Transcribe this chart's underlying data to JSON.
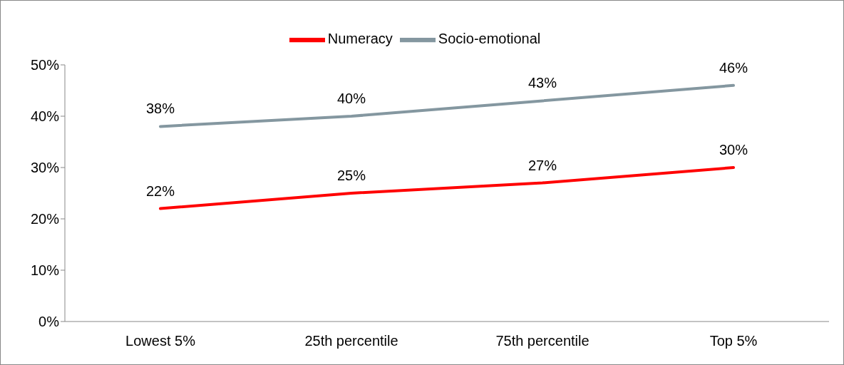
{
  "chart_data": {
    "type": "line",
    "categories": [
      "Lowest 5%",
      "25th percentile",
      "75th percentile",
      "Top 5%"
    ],
    "series": [
      {
        "name": "Numeracy",
        "color": "#ff0000",
        "values": [
          22,
          25,
          27,
          30
        ],
        "value_labels": [
          "22%",
          "25%",
          "27%",
          "30%"
        ]
      },
      {
        "name": "Socio-emotional",
        "color": "#8497a0",
        "values": [
          38,
          40,
          43,
          46
        ],
        "value_labels": [
          "38%",
          "40%",
          "43%",
          "46%"
        ]
      }
    ],
    "ylim": [
      0,
      50
    ],
    "yticks": [
      {
        "value": 0,
        "label": "0%"
      },
      {
        "value": 10,
        "label": "10%"
      },
      {
        "value": 20,
        "label": "20%"
      },
      {
        "value": 30,
        "label": "30%"
      },
      {
        "value": 40,
        "label": "40%"
      },
      {
        "value": 50,
        "label": "50%"
      }
    ],
    "grid": false,
    "legend": "top",
    "marker": "none",
    "line_style": "solid"
  }
}
